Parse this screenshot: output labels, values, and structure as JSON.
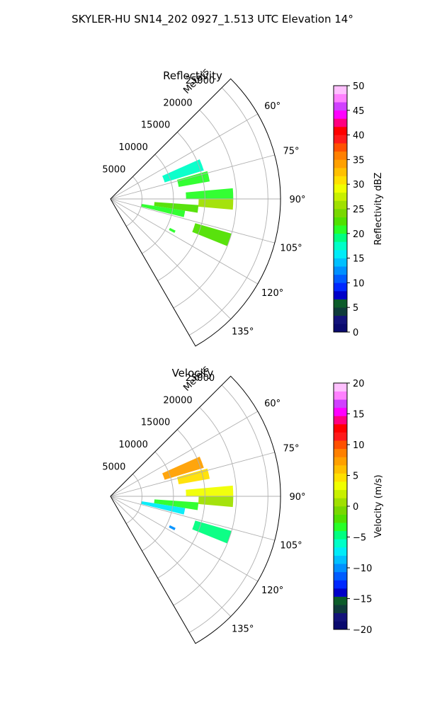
{
  "figure": {
    "title": "SKYLER-HU  SN14_202  0927_1.513 UTC Elevation 14°"
  },
  "chart_data": [
    {
      "type": "heatmap",
      "projection": "polar-sector",
      "title": "Reflectivity",
      "range_label": "Meters",
      "range_ticks": [
        "5000",
        "10000",
        "15000",
        "20000",
        "25000"
      ],
      "range_values": [
        5000,
        10000,
        15000,
        20000,
        25000
      ],
      "rmax": 27000,
      "azimuth_range_deg": [
        45,
        150
      ],
      "azimuth_ticks": [
        "60°",
        "75°",
        "90°",
        "105°",
        "120°",
        "135°"
      ],
      "azimuth_values": [
        60,
        75,
        90,
        105,
        120,
        135
      ],
      "grid": true,
      "colorbar": {
        "label": "Reflectivity dBZ",
        "min": 0,
        "max": 50,
        "ticks": [
          "0",
          "5",
          "10",
          "15",
          "20",
          "25",
          "30",
          "35",
          "40",
          "45",
          "50"
        ],
        "colors": [
          "#0a0a6e",
          "#13137a",
          "#0f3b3b",
          "#0c5c2a",
          "#0000c8",
          "#0028ff",
          "#005cff",
          "#0090ff",
          "#00c0ff",
          "#00ecf8",
          "#00ffc8",
          "#00ff80",
          "#28ff28",
          "#50e000",
          "#78d800",
          "#a0e000",
          "#c8f000",
          "#f0ff00",
          "#ffe000",
          "#ffc000",
          "#ffa000",
          "#ff8000",
          "#ff5000",
          "#ff1a1a",
          "#ff0000",
          "#ff0080",
          "#ff00ff",
          "#d040ff",
          "#ff80ff",
          "#ffc0ff"
        ]
      },
      "echoes": [
        {
          "az_from": 66,
          "az_to": 73,
          "r_from": 9000,
          "r_to": 15500,
          "value": 18
        },
        {
          "az_from": 74,
          "az_to": 80,
          "r_from": 11000,
          "r_to": 16000,
          "value": 21
        },
        {
          "az_from": 85,
          "az_to": 90,
          "r_from": 12000,
          "r_to": 19500,
          "value": 20
        },
        {
          "az_from": 90,
          "az_to": 95,
          "r_from": 14000,
          "r_to": 19500,
          "value": 26
        },
        {
          "az_from": 94,
          "az_to": 99,
          "r_from": 7000,
          "r_to": 14000,
          "value": 22
        },
        {
          "az_from": 99,
          "az_to": 104,
          "r_from": 5000,
          "r_to": 12000,
          "value": 20
        },
        {
          "az_from": 106,
          "az_to": 112,
          "r_from": 14000,
          "r_to": 20000,
          "value": 22
        },
        {
          "az_from": 116,
          "az_to": 118,
          "r_from": 10500,
          "r_to": 11500,
          "value": 20
        }
      ]
    },
    {
      "type": "heatmap",
      "projection": "polar-sector",
      "title": "Velocity",
      "range_label": "Meters",
      "range_ticks": [
        "5000",
        "10000",
        "15000",
        "20000",
        "25000"
      ],
      "range_values": [
        5000,
        10000,
        15000,
        20000,
        25000
      ],
      "rmax": 27000,
      "azimuth_range_deg": [
        45,
        150
      ],
      "azimuth_ticks": [
        "60°",
        "75°",
        "90°",
        "105°",
        "120°",
        "135°"
      ],
      "azimuth_values": [
        60,
        75,
        90,
        105,
        120,
        135
      ],
      "grid": true,
      "colorbar": {
        "label": "Velocity (m/s)",
        "min": -20,
        "max": 20,
        "ticks": [
          "−20",
          "−15",
          "−10",
          "−5",
          "0",
          "5",
          "10",
          "15",
          "20"
        ],
        "colors": [
          "#0a0a6e",
          "#13137a",
          "#0f3b3b",
          "#0c5c2a",
          "#0000c8",
          "#0028ff",
          "#005cff",
          "#0090ff",
          "#00c0ff",
          "#00ecf8",
          "#00ffc8",
          "#00ff80",
          "#28ff28",
          "#50e000",
          "#78d800",
          "#a0e000",
          "#c8f000",
          "#f0ff00",
          "#ffe000",
          "#ffc000",
          "#ffa000",
          "#ff8000",
          "#ff5000",
          "#ff1a1a",
          "#ff0000",
          "#ff0080",
          "#ff00ff",
          "#d040ff",
          "#ff80ff",
          "#ffc0ff"
        ]
      },
      "echoes": [
        {
          "az_from": 66,
          "az_to": 73,
          "r_from": 9000,
          "r_to": 15500,
          "value": 7
        },
        {
          "az_from": 74,
          "az_to": 80,
          "r_from": 11000,
          "r_to": 16000,
          "value": 4
        },
        {
          "az_from": 85,
          "az_to": 90,
          "r_from": 12000,
          "r_to": 19500,
          "value": 3
        },
        {
          "az_from": 90,
          "az_to": 95,
          "r_from": 14000,
          "r_to": 19500,
          "value": 0
        },
        {
          "az_from": 94,
          "az_to": 99,
          "r_from": 7000,
          "r_to": 14000,
          "value": -4
        },
        {
          "az_from": 99,
          "az_to": 104,
          "r_from": 5000,
          "r_to": 12000,
          "value": -8
        },
        {
          "az_from": 106,
          "az_to": 112,
          "r_from": 14000,
          "r_to": 20000,
          "value": -5
        },
        {
          "az_from": 116,
          "az_to": 118,
          "r_from": 10500,
          "r_to": 11500,
          "value": -10
        }
      ]
    }
  ]
}
